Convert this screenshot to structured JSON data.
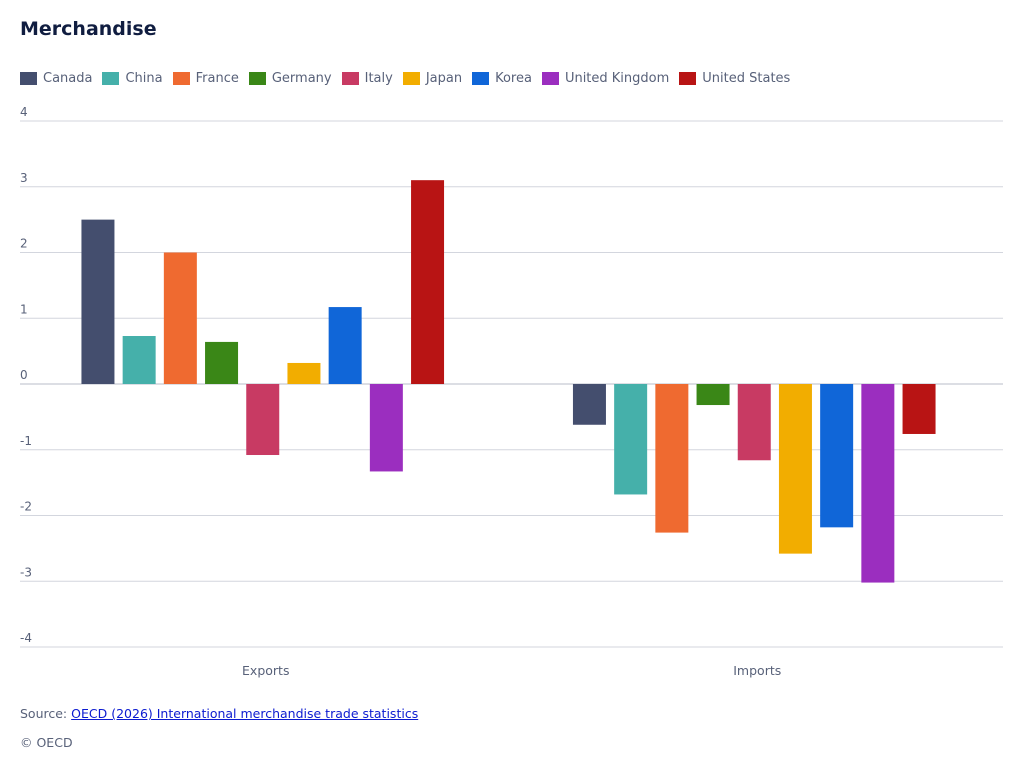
{
  "chart_data": {
    "type": "bar",
    "title": "Merchandise",
    "categories": [
      "Exports",
      "Imports"
    ],
    "ylim": [
      -4,
      4
    ],
    "yticks": [
      4,
      3,
      2,
      1,
      0,
      -1,
      -2,
      -3,
      -4
    ],
    "grid": true,
    "legend_position": "top",
    "series": [
      {
        "name": "Canada",
        "color": "#444e6e",
        "values": [
          2.5,
          -0.62
        ]
      },
      {
        "name": "China",
        "color": "#45b0aa",
        "values": [
          0.73,
          -1.68
        ]
      },
      {
        "name": "France",
        "color": "#ef6a30",
        "values": [
          2.0,
          -2.26
        ]
      },
      {
        "name": "Germany",
        "color": "#3a8717",
        "values": [
          0.64,
          -0.32
        ]
      },
      {
        "name": "Italy",
        "color": "#c83a63",
        "values": [
          -1.08,
          -1.16
        ]
      },
      {
        "name": "Japan",
        "color": "#f2ad00",
        "values": [
          0.32,
          -2.58
        ]
      },
      {
        "name": "Korea",
        "color": "#1066d8",
        "values": [
          1.17,
          -2.18
        ]
      },
      {
        "name": "United Kingdom",
        "color": "#9b2ebf",
        "values": [
          -1.33,
          -3.02
        ]
      },
      {
        "name": "United States",
        "color": "#b81414",
        "values": [
          3.1,
          -0.76
        ]
      }
    ]
  },
  "footer": {
    "source_label": "Source:",
    "source_link_text": "OECD (2026) International merchandise trade statistics",
    "copyright": "© OECD"
  }
}
